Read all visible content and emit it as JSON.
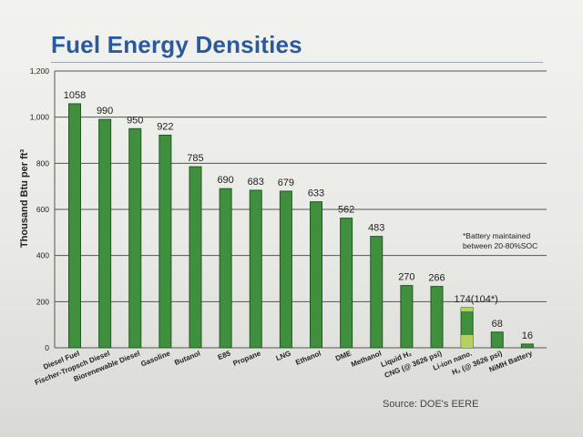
{
  "chart_data": {
    "type": "bar",
    "title": "Fuel Energy Densities",
    "ylabel": "Thousand Btu per ft³",
    "ylim": [
      0,
      1200
    ],
    "yticks": [
      "1,200",
      "1,000",
      "800",
      "600",
      "400",
      "200",
      "0"
    ],
    "categories": [
      "Diesel Fuel",
      "Fischer-Tropsch Diesel",
      "Biorenewable Diesel",
      "Gasoline",
      "Butanol",
      "E85",
      "Propane",
      "LNG",
      "Ethanol",
      "DME",
      "Methanol",
      "Liquid H₂",
      "CNG (@ 3626 psi)",
      "Li-ion nano.",
      "H₂ (@ 3626 psi)",
      "NiMH Battery"
    ],
    "values": [
      1058,
      990,
      950,
      922,
      785,
      690,
      683,
      679,
      633,
      562,
      483,
      270,
      266,
      174,
      68,
      16
    ],
    "value_labels": [
      "1058",
      "990",
      "950",
      "922",
      "785",
      "690",
      "683",
      "679",
      "633",
      "562",
      "483",
      "270",
      "266",
      "174(104*)",
      "68",
      "16"
    ],
    "battery_soc_value": 104,
    "annotation": "*Battery maintained between 20-80%SOC",
    "bar_color": "#3f8f3f",
    "bar_edge_color": "#1f5a1f",
    "soc_band_color": "#b7cf63",
    "grid": true
  },
  "footer": "Source: DOE's EERE"
}
